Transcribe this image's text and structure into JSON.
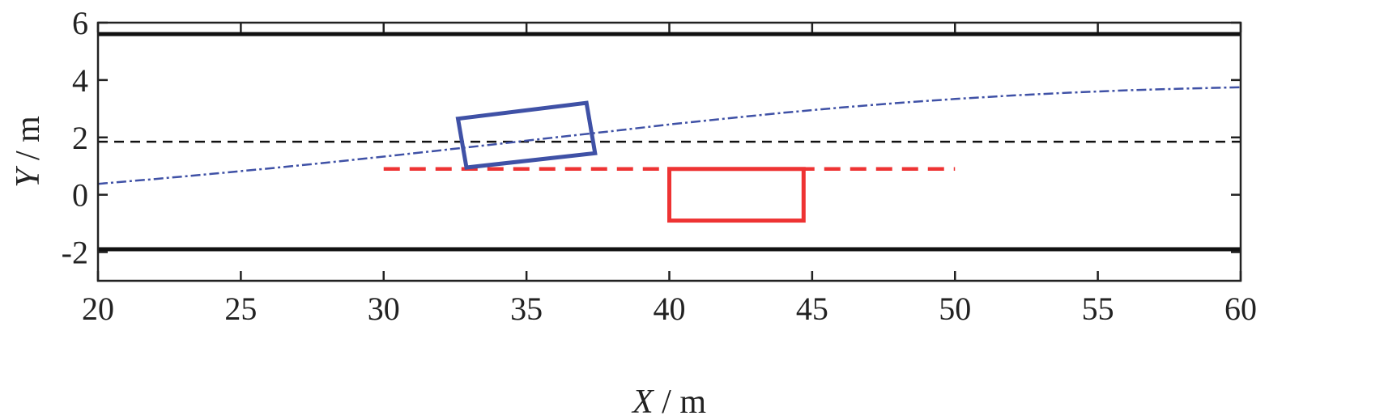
{
  "chart_data": {
    "type": "line",
    "title": "",
    "xlabel": {
      "var": "X",
      "unit": " / m"
    },
    "ylabel": {
      "var": "Y",
      "unit": " / m"
    },
    "xlim": [
      20,
      60
    ],
    "ylim": [
      -3,
      6
    ],
    "xticks": [
      20,
      25,
      30,
      35,
      40,
      45,
      50,
      55,
      60
    ],
    "yticks": [
      -2,
      0,
      2,
      4,
      6
    ],
    "grid": false,
    "colors": {
      "frame": "#222222",
      "boundary": "#111111",
      "center_line": "#111111",
      "ego": "#3f51a6",
      "obstacle": "#ee3333"
    },
    "lane_boundaries": [
      {
        "y": 5.6,
        "x": [
          20,
          60
        ],
        "style": "solid"
      },
      {
        "y": -1.9,
        "x": [
          20,
          60
        ],
        "style": "solid"
      }
    ],
    "center_line": {
      "y": 1.85,
      "x": [
        20,
        60
      ],
      "style": "dashed"
    },
    "ego_path": {
      "style": "dash-dot",
      "points": [
        [
          20,
          0.38
        ],
        [
          22,
          0.55
        ],
        [
          24,
          0.73
        ],
        [
          26,
          0.92
        ],
        [
          28,
          1.12
        ],
        [
          30,
          1.33
        ],
        [
          32,
          1.55
        ],
        [
          34,
          1.77
        ],
        [
          36,
          2.0
        ],
        [
          38,
          2.22
        ],
        [
          40,
          2.45
        ],
        [
          42,
          2.66
        ],
        [
          44,
          2.86
        ],
        [
          46,
          3.04
        ],
        [
          48,
          3.2
        ],
        [
          50,
          3.34
        ],
        [
          52,
          3.46
        ],
        [
          54,
          3.56
        ],
        [
          56,
          3.64
        ],
        [
          58,
          3.7
        ],
        [
          60,
          3.75
        ]
      ]
    },
    "ego_vehicle": {
      "corners": [
        [
          32.6,
          2.65
        ],
        [
          37.1,
          3.2
        ],
        [
          37.4,
          1.45
        ],
        [
          32.9,
          0.95
        ]
      ]
    },
    "obstacle_path": {
      "style": "dashed",
      "y": 0.9,
      "x": [
        30,
        50
      ]
    },
    "obstacle_vehicle": {
      "x": [
        40,
        44.7
      ],
      "y": [
        -0.9,
        0.9
      ]
    }
  }
}
